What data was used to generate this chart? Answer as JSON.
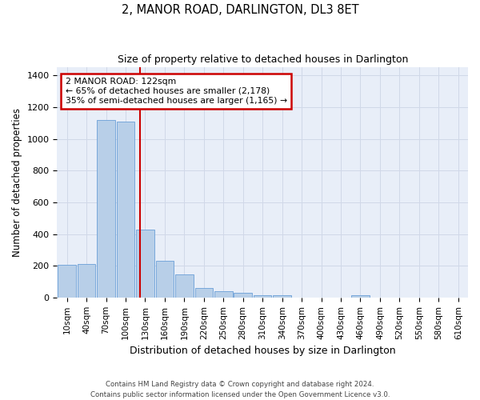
{
  "title": "2, MANOR ROAD, DARLINGTON, DL3 8ET",
  "subtitle": "Size of property relative to detached houses in Darlington",
  "xlabel": "Distribution of detached houses by size in Darlington",
  "ylabel": "Number of detached properties",
  "footer_line1": "Contains HM Land Registry data © Crown copyright and database right 2024.",
  "footer_line2": "Contains public sector information licensed under the Open Government Licence v3.0.",
  "bar_color": "#b8cfe8",
  "bar_edge_color": "#6a9fd8",
  "grid_color": "#d0d8e8",
  "bg_color": "#e8eef8",
  "annotation_box_color": "#cc0000",
  "vline_color": "#cc0000",
  "annotation_text": "2 MANOR ROAD: 122sqm\n← 65% of detached houses are smaller (2,178)\n35% of semi-detached houses are larger (1,165) →",
  "property_sqm": 122,
  "bin_labels": [
    "10sqm",
    "40sqm",
    "70sqm",
    "100sqm",
    "130sqm",
    "160sqm",
    "190sqm",
    "220sqm",
    "250sqm",
    "280sqm",
    "310sqm",
    "340sqm",
    "370sqm",
    "400sqm",
    "430sqm",
    "460sqm",
    "490sqm",
    "520sqm",
    "550sqm",
    "580sqm",
    "610sqm"
  ],
  "bar_values": [
    207,
    210,
    1120,
    1110,
    430,
    233,
    148,
    58,
    40,
    28,
    14,
    15,
    0,
    0,
    0,
    14,
    0,
    0,
    0,
    0,
    0
  ],
  "ylim": [
    0,
    1450
  ],
  "yticks": [
    0,
    200,
    400,
    600,
    800,
    1000,
    1200,
    1400
  ]
}
